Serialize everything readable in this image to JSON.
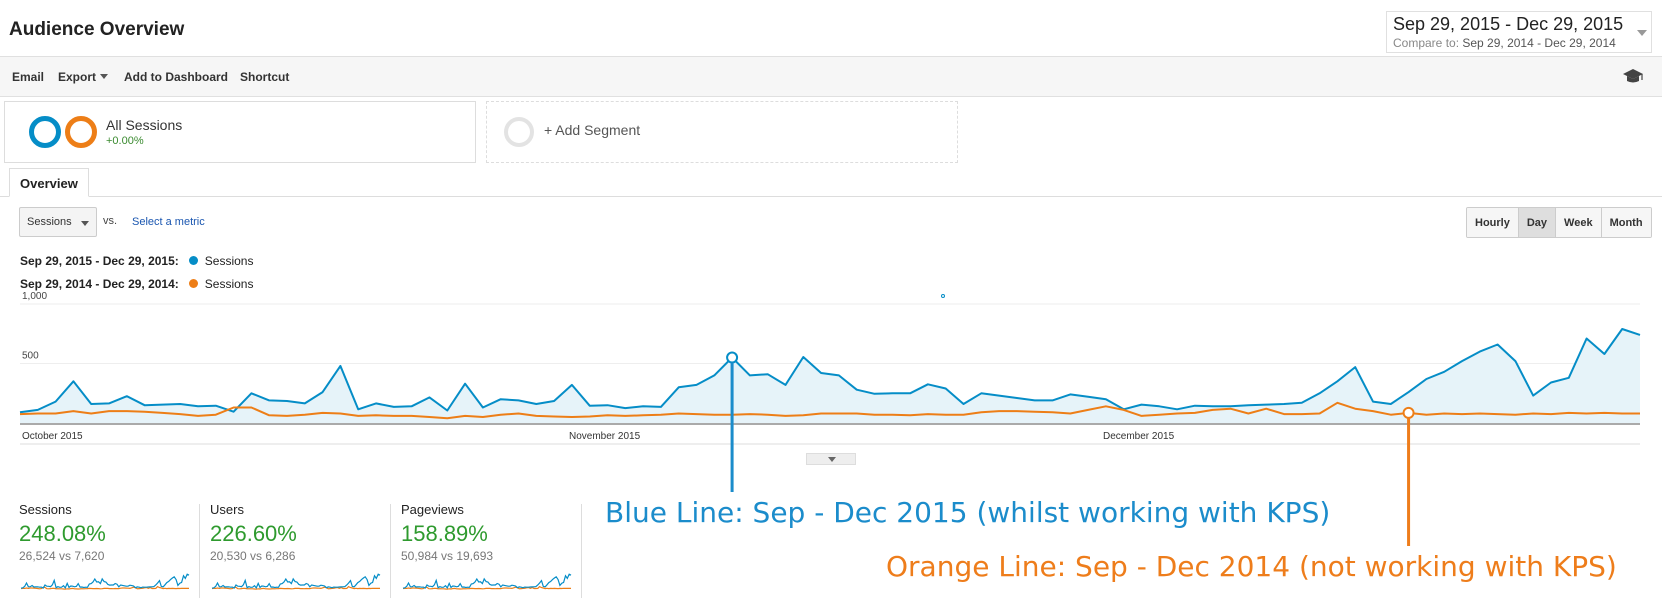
{
  "header": {
    "title": "Audience Overview",
    "date_range": "Sep 29, 2015 - Dec 29, 2015",
    "compare_label": "Compare to:",
    "compare_range": "Sep 29, 2014 - Dec 29, 2014"
  },
  "toolbar": {
    "email": "Email",
    "export": "Export",
    "add_to_dashboard": "Add to Dashboard",
    "shortcut": "Shortcut",
    "icons": [
      "graduation-cap-icon"
    ]
  },
  "segments": {
    "all_sessions": {
      "name": "All Sessions",
      "change": "+0.00%",
      "colors": [
        "#058dc7",
        "#ed7e17"
      ]
    },
    "add_segment": "+ Add Segment"
  },
  "tabs": {
    "overview": "Overview"
  },
  "controls": {
    "metric": "Sessions",
    "vs": "vs.",
    "select_metric": "Select a metric",
    "granularity": [
      "Hourly",
      "Day",
      "Week",
      "Month"
    ],
    "active_granularity": "Day"
  },
  "legend": [
    {
      "range": "Sep 29, 2015 - Dec 29, 2015:",
      "metric": "Sessions",
      "color": "#058dc7"
    },
    {
      "range": "Sep 29, 2014 - Dec 29, 2014:",
      "metric": "Sessions",
      "color": "#ed7e17"
    }
  ],
  "chart_data": {
    "type": "area",
    "ylim": [
      0,
      1000
    ],
    "y_ticks": [
      "1,000",
      "500"
    ],
    "x_labels": [
      "October 2015",
      "November 2015",
      "December 2015"
    ],
    "series": [
      {
        "name": "Sessions",
        "color": "#058dc7",
        "values": [
          90,
          110,
          180,
          350,
          160,
          165,
          225,
          150,
          155,
          160,
          140,
          145,
          95,
          250,
          190,
          185,
          165,
          260,
          480,
          115,
          165,
          135,
          140,
          215,
          105,
          330,
          130,
          200,
          190,
          160,
          185,
          320,
          145,
          150,
          125,
          140,
          135,
          300,
          320,
          400,
          550,
          400,
          410,
          320,
          555,
          420,
          400,
          280,
          245,
          250,
          250,
          325,
          290,
          160,
          250,
          230,
          210,
          190,
          190,
          240,
          220,
          200,
          115,
          155,
          140,
          115,
          145,
          140,
          140,
          150,
          155,
          160,
          170,
          250,
          350,
          470,
          180,
          160,
          260,
          370,
          430,
          520,
          600,
          660,
          520,
          230,
          340,
          380,
          710,
          580,
          790,
          740
        ]
      },
      {
        "name": "Sessions",
        "color": "#ed7e17",
        "values": [
          75,
          80,
          80,
          100,
          80,
          100,
          100,
          95,
          85,
          75,
          60,
          70,
          130,
          130,
          65,
          60,
          70,
          85,
          80,
          60,
          65,
          60,
          60,
          50,
          40,
          60,
          50,
          70,
          80,
          60,
          55,
          50,
          55,
          65,
          60,
          65,
          70,
          80,
          75,
          70,
          70,
          75,
          70,
          60,
          65,
          80,
          80,
          80,
          70,
          70,
          65,
          75,
          70,
          70,
          90,
          100,
          100,
          95,
          90,
          80,
          110,
          140,
          110,
          60,
          70,
          80,
          85,
          110,
          120,
          80,
          120,
          75,
          75,
          80,
          170,
          120,
          100,
          70,
          85,
          70,
          80,
          75,
          80,
          75,
          70,
          80,
          75,
          85,
          80,
          85,
          80,
          80
        ]
      }
    ],
    "highlight_points": [
      {
        "series": 0,
        "index": 40
      },
      {
        "series": 1,
        "index": 78
      }
    ]
  },
  "scorecards": [
    {
      "title": "Sessions",
      "change": "248.08%",
      "compare": "26,524 vs 7,620"
    },
    {
      "title": "Users",
      "change": "226.60%",
      "compare": "20,530 vs 6,286"
    },
    {
      "title": "Pageviews",
      "change": "158.89%",
      "compare": "50,984 vs 19,693"
    }
  ],
  "annotations": {
    "blue": "Blue Line: Sep - Dec 2015 (whilst working with KPS)",
    "orange": "Orange Line: Sep - Dec 2014 (not working with KPS)",
    "blue_color": "#1b8ccb",
    "orange_color": "#ee7d1b"
  }
}
